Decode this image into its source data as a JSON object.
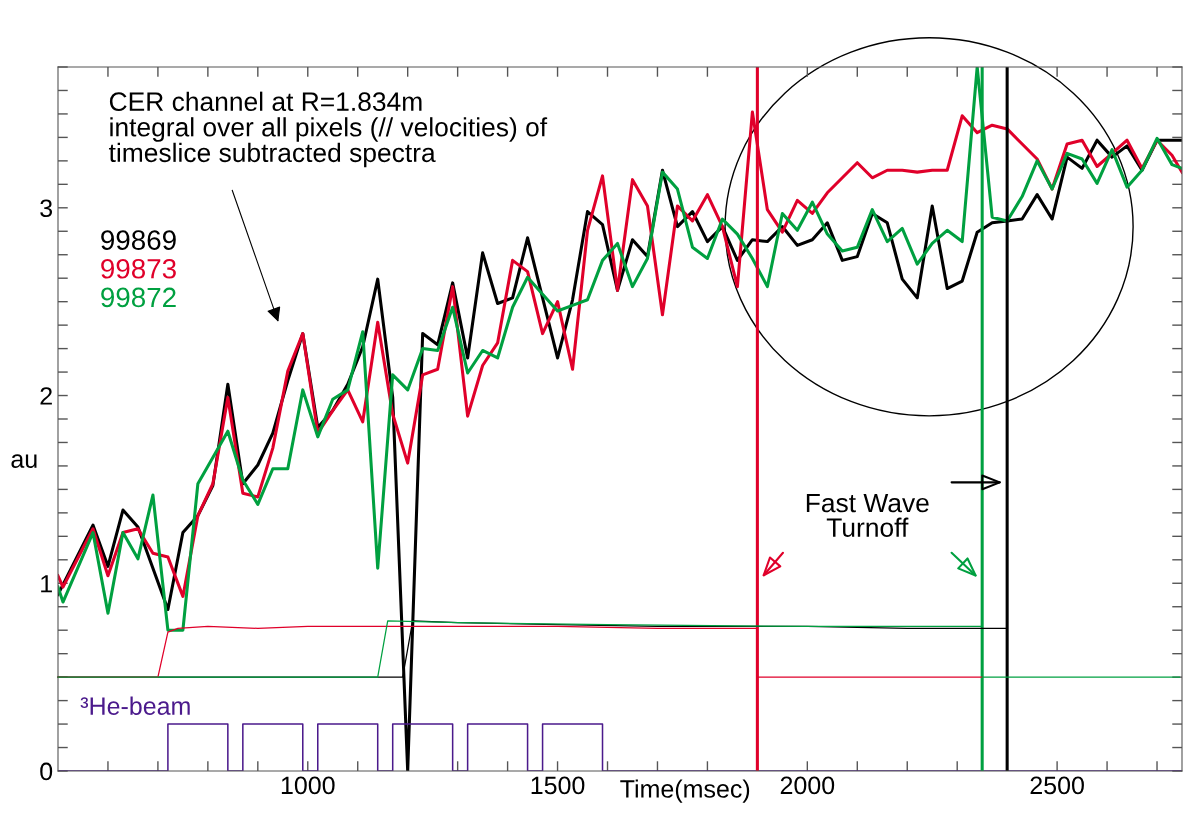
{
  "chart_data": {
    "type": "line",
    "xlabel": "Time(msec)",
    "ylabel": "au",
    "xlim": [
      500,
      2750
    ],
    "ylim": [
      0,
      3.75
    ],
    "xticks": [
      {
        "value": 600,
        "label": null
      },
      {
        "value": 700,
        "label": null
      },
      {
        "value": 800,
        "label": null
      },
      {
        "value": 900,
        "label": null
      },
      1000,
      {
        "value": 1100,
        "label": null
      },
      {
        "value": 1200,
        "label": null
      },
      {
        "value": 1300,
        "label": null
      },
      {
        "value": 1400,
        "label": null
      },
      1500,
      {
        "value": 1600,
        "label": null
      },
      {
        "value": 1700,
        "label": null
      },
      {
        "value": 1800,
        "label": null
      },
      {
        "value": 1900,
        "label": null
      },
      2000,
      {
        "value": 2100,
        "label": null
      },
      {
        "value": 2200,
        "label": null
      },
      {
        "value": 2300,
        "label": null
      },
      {
        "value": 2400,
        "label": null
      },
      2500,
      {
        "value": 2600,
        "label": null
      },
      {
        "value": 2700,
        "label": null
      }
    ],
    "yticks": [
      0,
      {
        "value": 0.125,
        "label": null
      },
      {
        "value": 0.25,
        "label": null
      },
      {
        "value": 0.375,
        "label": null
      },
      {
        "value": 0.5,
        "label": null
      },
      {
        "value": 0.625,
        "label": null
      },
      {
        "value": 0.75,
        "label": null
      },
      {
        "value": 0.875,
        "label": null
      },
      1,
      {
        "value": 1.125,
        "label": null
      },
      {
        "value": 1.25,
        "label": null
      },
      {
        "value": 1.375,
        "label": null
      },
      {
        "value": 1.5,
        "label": null
      },
      {
        "value": 1.625,
        "label": null
      },
      {
        "value": 1.75,
        "label": null
      },
      {
        "value": 1.875,
        "label": null
      },
      2,
      {
        "value": 2.125,
        "label": null
      },
      {
        "value": 2.25,
        "label": null
      },
      {
        "value": 2.375,
        "label": null
      },
      {
        "value": 2.5,
        "label": null
      },
      {
        "value": 2.625,
        "label": null
      },
      {
        "value": 2.75,
        "label": null
      },
      {
        "value": 2.875,
        "label": null
      },
      3,
      {
        "value": 3.125,
        "label": null
      },
      {
        "value": 3.25,
        "label": null
      },
      {
        "value": 3.375,
        "label": null
      },
      {
        "value": 3.5,
        "label": null
      },
      {
        "value": 3.625,
        "label": null
      },
      {
        "value": 3.75,
        "label": null
      }
    ],
    "grid": false,
    "legend": "left",
    "series": [
      {
        "color": "#000000",
        "x": [
          500,
          1190,
          1210,
          1300,
          1500,
          1700,
          2000,
          2200,
          2400
        ],
        "values": [
          0.5,
          0.5,
          0.8,
          0.79,
          0.78,
          0.77,
          0.77,
          0.76,
          0.76
        ]
      },
      {
        "color": "#e0002a",
        "x": [
          500,
          700,
          720,
          740,
          800,
          900,
          1000,
          1200,
          1500,
          1700,
          1900
        ],
        "values": [
          0.5,
          0.5,
          0.74,
          0.76,
          0.77,
          0.76,
          0.77,
          0.77,
          0.77,
          0.76,
          0.76
        ]
      },
      {
        "color": "#e0002a",
        "x": [
          1900,
          2350
        ],
        "values": [
          0.5,
          0.5
        ]
      },
      {
        "color": "#00a040",
        "x": [
          500,
          1140,
          1160,
          1300,
          1600,
          2000,
          2200,
          2350
        ],
        "values": [
          0.5,
          0.5,
          0.8,
          0.79,
          0.78,
          0.77,
          0.77,
          0.77
        ]
      },
      {
        "color": "#00a040",
        "x": [
          2350,
          2745
        ],
        "values": [
          0.5,
          0.5
        ]
      },
      {
        "name": "99869",
        "color": "#000000",
        "x": [
          500,
          570,
          600,
          630,
          660,
          720,
          750,
          780,
          810,
          840,
          870,
          900,
          930,
          960,
          990,
          1020,
          1050,
          1080,
          1110,
          1140,
          1170,
          1200,
          1230,
          1260,
          1290,
          1320,
          1350,
          1380,
          1410,
          1440,
          1470,
          1500,
          1530,
          1560,
          1590,
          1620,
          1650,
          1680,
          1710,
          1740,
          1770,
          1800,
          1830,
          1860,
          1890,
          1920,
          1950,
          1980,
          2010,
          2040,
          2070,
          2100,
          2130,
          2160,
          2190,
          2220,
          2250,
          2280,
          2310,
          2340,
          2370,
          2400,
          2430,
          2460,
          2490,
          2520,
          2550,
          2580,
          2610,
          2640,
          2670,
          2700,
          2730,
          2750
        ],
        "values": [
          0.94,
          1.31,
          1.09,
          1.39,
          1.3,
          0.86,
          1.27,
          1.36,
          1.52,
          2.06,
          1.53,
          1.63,
          1.8,
          2.08,
          2.33,
          1.83,
          1.92,
          2.06,
          2.26,
          2.62,
          1.99,
          0.0,
          2.33,
          2.27,
          2.6,
          2.2,
          2.76,
          2.49,
          2.52,
          2.84,
          2.52,
          2.2,
          2.51,
          2.98,
          2.91,
          2.56,
          2.83,
          2.74,
          3.2,
          2.9,
          2.98,
          2.82,
          2.9,
          2.72,
          2.83,
          2.82,
          2.9,
          2.8,
          2.83,
          2.92,
          2.72,
          2.74,
          2.97,
          2.92,
          2.62,
          2.52,
          3.01,
          2.57,
          2.61,
          2.87,
          2.92,
          2.93,
          2.94,
          3.07,
          2.94,
          3.27,
          3.21,
          3.36,
          3.27,
          3.33,
          3.2,
          3.36,
          3.36,
          3.36
        ]
      },
      {
        "name": "99873",
        "color": "#e0002a",
        "x": [
          500,
          510,
          570,
          600,
          630,
          660,
          690,
          720,
          750,
          780,
          810,
          840,
          870,
          900,
          930,
          960,
          990,
          1020,
          1050,
          1080,
          1110,
          1140,
          1170,
          1200,
          1230,
          1260,
          1290,
          1320,
          1350,
          1380,
          1410,
          1440,
          1470,
          1500,
          1530,
          1560,
          1590,
          1620,
          1650,
          1680,
          1710,
          1740,
          1770,
          1800,
          1830,
          1860,
          1890,
          1920,
          1950,
          1980,
          2010,
          2040,
          2070,
          2100,
          2130,
          2160,
          2190,
          2220,
          2250,
          2280,
          2310,
          2340,
          2370,
          2400,
          2430,
          2460,
          2490,
          2520,
          2550,
          2580,
          2610,
          2640,
          2670,
          2700,
          2730,
          2750
        ],
        "values": [
          1.04,
          0.98,
          1.29,
          1.04,
          1.27,
          1.29,
          1.16,
          1.14,
          0.93,
          1.36,
          1.53,
          1.99,
          1.48,
          1.46,
          1.72,
          2.13,
          2.33,
          1.8,
          1.92,
          2.03,
          1.86,
          2.39,
          1.9,
          1.64,
          2.11,
          2.14,
          2.58,
          1.89,
          2.16,
          2.28,
          2.72,
          2.66,
          2.33,
          2.5,
          2.14,
          2.88,
          3.17,
          2.56,
          3.15,
          3.01,
          2.43,
          3.01,
          2.93,
          3.07,
          2.9,
          2.58,
          3.51,
          2.99,
          2.87,
          3.04,
          2.97,
          3.08,
          3.16,
          3.24,
          3.16,
          3.2,
          3.2,
          3.19,
          3.2,
          3.2,
          3.49,
          3.4,
          3.44,
          3.42,
          3.34,
          3.26,
          3.1,
          3.34,
          3.36,
          3.22,
          3.29,
          3.36,
          3.21,
          3.36,
          3.28,
          3.19
        ]
      },
      {
        "name": "99872",
        "color": "#00a040",
        "x": [
          500,
          510,
          570,
          600,
          630,
          660,
          690,
          720,
          750,
          780,
          810,
          840,
          870,
          900,
          930,
          960,
          990,
          1020,
          1050,
          1080,
          1110,
          1140,
          1170,
          1200,
          1230,
          1260,
          1290,
          1320,
          1350,
          1380,
          1410,
          1440,
          1470,
          1500,
          1530,
          1560,
          1590,
          1620,
          1650,
          1680,
          1710,
          1740,
          1770,
          1800,
          1830,
          1860,
          1890,
          1920,
          1950,
          1980,
          2010,
          2040,
          2070,
          2100,
          2130,
          2160,
          2190,
          2220,
          2250,
          2280,
          2310,
          2340,
          2370,
          2400,
          2430,
          2460,
          2490,
          2520,
          2550,
          2580,
          2610,
          2640,
          2670,
          2700,
          2730,
          2750
        ],
        "values": [
          0.98,
          0.9,
          1.27,
          0.84,
          1.27,
          1.13,
          1.47,
          0.75,
          0.75,
          1.53,
          1.67,
          1.81,
          1.55,
          1.42,
          1.61,
          1.61,
          2.03,
          1.78,
          1.98,
          2.03,
          2.34,
          1.08,
          2.11,
          2.03,
          2.25,
          2.24,
          2.47,
          2.12,
          2.24,
          2.2,
          2.47,
          2.63,
          2.54,
          2.45,
          2.48,
          2.51,
          2.72,
          2.81,
          2.58,
          2.73,
          3.19,
          3.1,
          2.79,
          2.73,
          2.94,
          2.86,
          2.73,
          2.58,
          2.97,
          2.88,
          3.03,
          2.86,
          2.77,
          2.79,
          2.99,
          2.82,
          2.89,
          2.7,
          2.81,
          2.88,
          2.82,
          3.75,
          2.95,
          2.93,
          3.06,
          3.25,
          3.1,
          3.29,
          3.26,
          3.13,
          3.31,
          3.11,
          3.2,
          3.37,
          3.23,
          3.21
        ]
      },
      {
        "type": "step",
        "name": "³He-beam",
        "color": "#4b1a8c",
        "x": [
          500,
          720,
          840,
          870,
          990,
          1020,
          1140,
          1170,
          1290,
          1320,
          1440,
          1470,
          1590,
          2750
        ],
        "values": [
          0,
          0.25,
          0,
          0.25,
          0,
          0.25,
          0,
          0.25,
          0,
          0.25,
          0,
          0.25,
          0,
          0
        ]
      }
    ],
    "ref_lines": [
      {
        "axis": "x",
        "value": 1900,
        "color": "#e0002a"
      },
      {
        "axis": "x",
        "value": 2350,
        "color": "#00a040"
      },
      {
        "axis": "x",
        "value": 2400,
        "color": "#000000"
      }
    ],
    "annotations": [
      "CER channel at R=1.834m\nintegral over all pixels (// velocities) of\ntimeslice subtracted spectra",
      "Fast Wave\nTurnoff"
    ]
  }
}
